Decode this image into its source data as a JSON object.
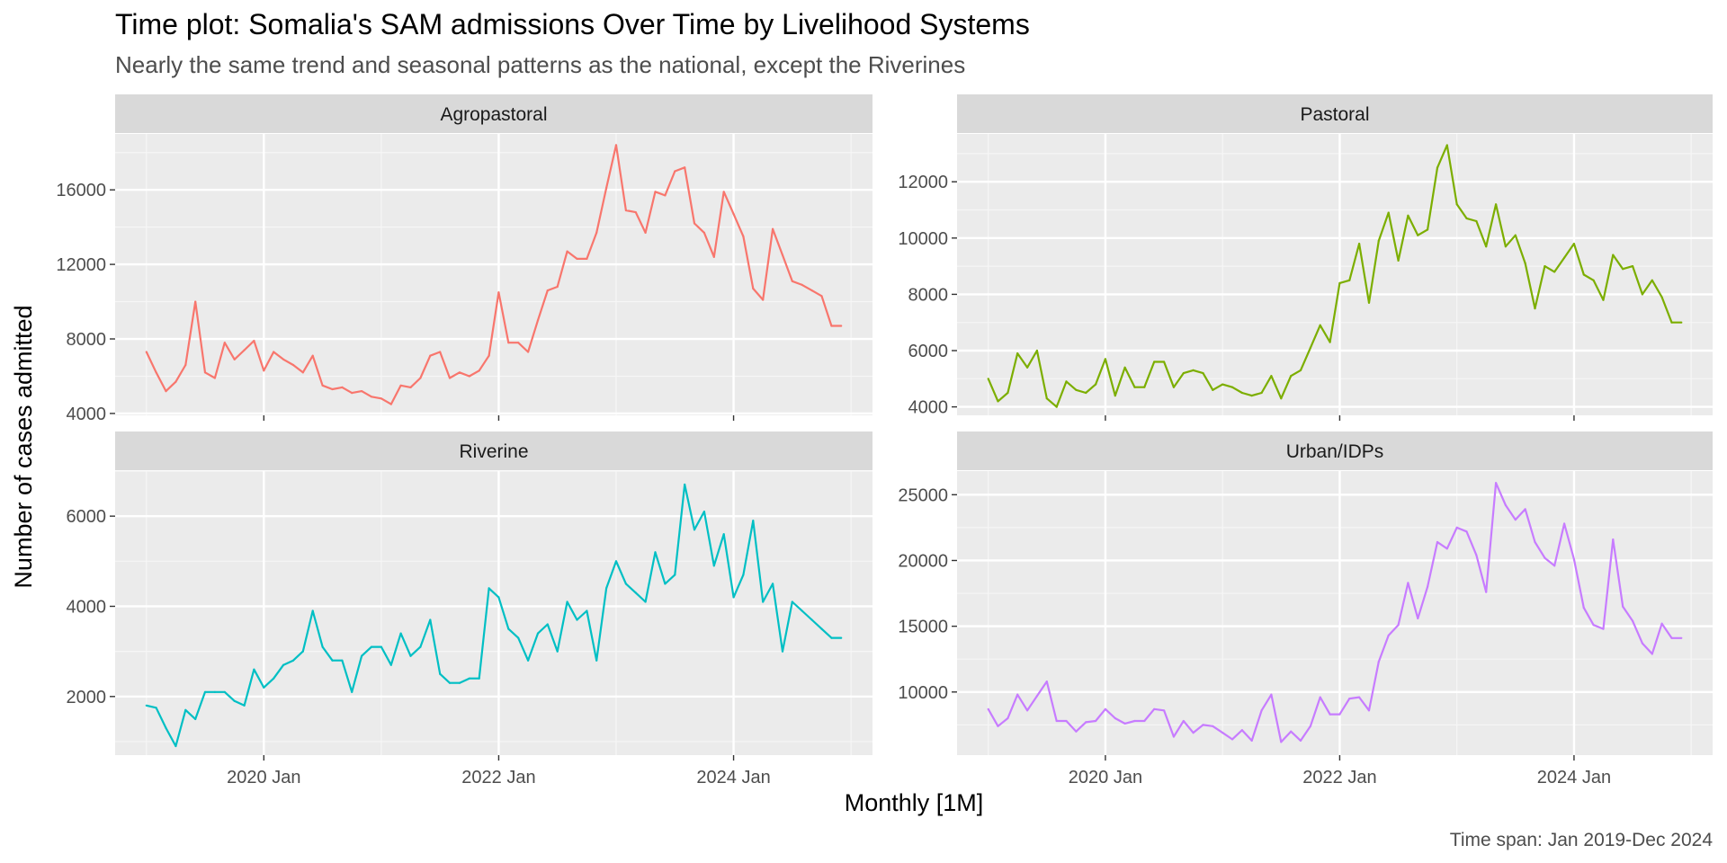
{
  "chart_data": {
    "type": "line",
    "title": "Time plot: Somalia's SAM admissions Over Time by Livelihood Systems",
    "subtitle": "Nearly the same trend and seasonal patterns as the national, except the Riverines",
    "caption": "Time span: Jan 2019-Dec 2024",
    "xlabel": "Monthly [1M]",
    "ylabel": "Number of cases admitted",
    "x_ticks": [
      "2020 Jan",
      "2022 Jan",
      "2024 Jan"
    ],
    "x_start": "2019 Jan",
    "x_end": "2024 Dec",
    "grid": true,
    "legend": "none",
    "facets": [
      {
        "name": "Agropastoral",
        "color": "#F8766D",
        "ylim": [
          3900,
          19000
        ],
        "y_ticks": [
          4000,
          8000,
          12000,
          16000
        ],
        "values": [
          7300,
          6200,
          5200,
          5700,
          6600,
          10000,
          6200,
          5900,
          7800,
          6900,
          7400,
          7900,
          6300,
          7300,
          6900,
          6600,
          6200,
          7100,
          5500,
          5300,
          5400,
          5100,
          5200,
          4900,
          4800,
          4500,
          5500,
          5400,
          5900,
          7100,
          7300,
          5900,
          6200,
          6000,
          6300,
          7100,
          10500,
          7800,
          7800,
          7300,
          9000,
          10600,
          10800,
          12700,
          12300,
          12300,
          13700,
          16100,
          18400,
          14900,
          14800,
          13700,
          15900,
          15700,
          17000,
          17200,
          14200,
          13700,
          12400,
          15900,
          14700,
          13500,
          10700,
          10100,
          13900,
          12500,
          11100,
          10900,
          10600,
          10300,
          8700,
          8700
        ]
      },
      {
        "name": "Pastoral",
        "color": "#7CAE00",
        "ylim": [
          3700,
          13700
        ],
        "y_ticks": [
          4000,
          6000,
          8000,
          10000,
          12000
        ],
        "values": [
          5000,
          4200,
          4500,
          5900,
          5400,
          6000,
          4300,
          4000,
          4900,
          4600,
          4500,
          4800,
          5700,
          4400,
          5400,
          4700,
          4700,
          5600,
          5600,
          4700,
          5200,
          5300,
          5200,
          4600,
          4800,
          4700,
          4500,
          4400,
          4500,
          5100,
          4300,
          5100,
          5300,
          6100,
          6900,
          6300,
          8400,
          8500,
          9800,
          7700,
          9900,
          10900,
          9200,
          10800,
          10100,
          10300,
          12500,
          13300,
          11200,
          10700,
          10600,
          9700,
          11200,
          9700,
          10100,
          9100,
          7500,
          9000,
          8800,
          9300,
          9800,
          8700,
          8500,
          7800,
          9400,
          8900,
          9000,
          8000,
          8500,
          7900,
          7000,
          7000
        ]
      },
      {
        "name": "Riverine",
        "color": "#00BFC4",
        "ylim": [
          700,
          7000
        ],
        "y_ticks": [
          2000,
          4000,
          6000
        ],
        "values": [
          1800,
          1750,
          1300,
          900,
          1700,
          1500,
          2100,
          2100,
          2100,
          1900,
          1800,
          2600,
          2200,
          2400,
          2700,
          2800,
          3000,
          3900,
          3100,
          2800,
          2800,
          2100,
          2900,
          3100,
          3100,
          2700,
          3400,
          2900,
          3100,
          3700,
          2500,
          2300,
          2300,
          2400,
          2400,
          4400,
          4200,
          3500,
          3300,
          2800,
          3400,
          3600,
          3000,
          4100,
          3700,
          3900,
          2800,
          4400,
          5000,
          4500,
          4300,
          4100,
          5200,
          4500,
          4700,
          6700,
          5700,
          6100,
          4900,
          5600,
          4200,
          4700,
          5900,
          4100,
          4500,
          3000,
          4100,
          3900,
          3700,
          3500,
          3300,
          3300
        ]
      },
      {
        "name": "Urban/IDPs",
        "color": "#C77CFF",
        "ylim": [
          5200,
          26800
        ],
        "y_ticks": [
          10000,
          15000,
          20000,
          25000
        ],
        "values": [
          8700,
          7400,
          8000,
          9800,
          8600,
          9700,
          10800,
          7800,
          7800,
          7000,
          7700,
          7800,
          8700,
          8000,
          7600,
          7800,
          7800,
          8700,
          8600,
          6600,
          7800,
          6900,
          7500,
          7400,
          6900,
          6400,
          7100,
          6300,
          8600,
          9800,
          6200,
          7000,
          6300,
          7400,
          9600,
          8300,
          8300,
          9500,
          9600,
          8600,
          12300,
          14300,
          15100,
          18300,
          15600,
          18000,
          21400,
          20900,
          22500,
          22200,
          20400,
          17600,
          25900,
          24200,
          23100,
          23900,
          21400,
          20200,
          19600,
          22800,
          20100,
          16400,
          15100,
          14800,
          21600,
          16500,
          15400,
          13700,
          12900,
          15200,
          14100,
          14100
        ]
      }
    ]
  }
}
